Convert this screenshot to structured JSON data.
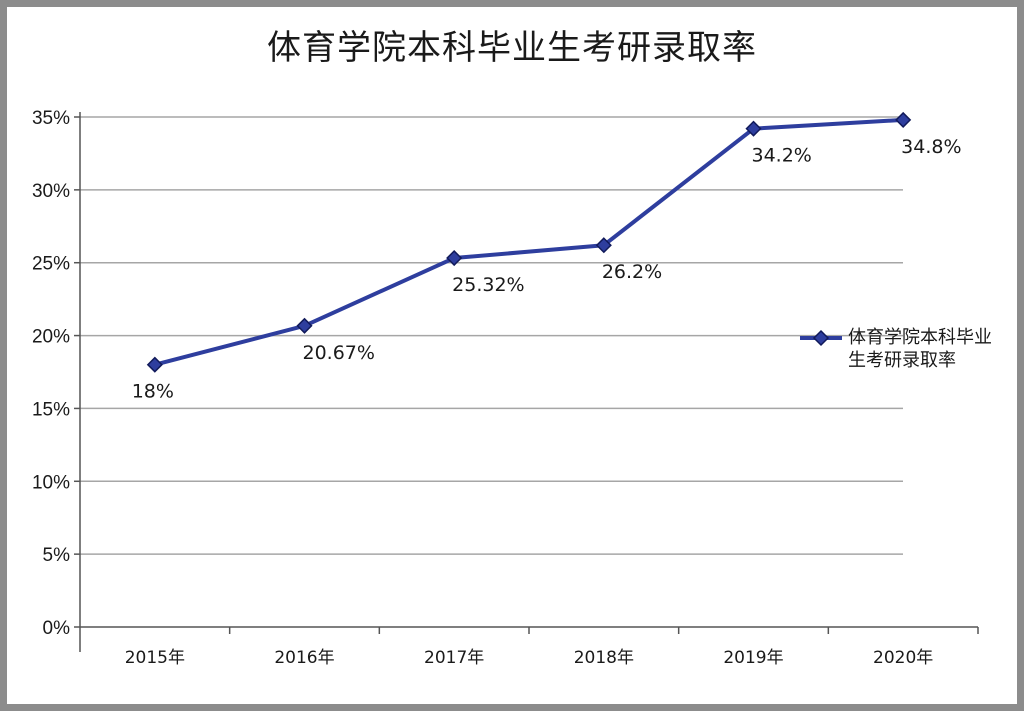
{
  "chart_data": {
    "type": "line",
    "title": "体育学院本科毕业生考研录取率",
    "categories": [
      "2015年",
      "2016年",
      "2017年",
      "2018年",
      "2019年",
      "2020年"
    ],
    "series": [
      {
        "name": "体育学院本科毕业生考研录取率",
        "values": [
          18,
          20.67,
          25.32,
          26.2,
          34.2,
          34.8
        ],
        "data_labels": [
          "18%",
          "20.67%",
          "25.32%",
          "26.2%",
          "34.2%",
          "34.8%"
        ],
        "color": "#2e3e9e",
        "marker": "diamond"
      }
    ],
    "y_ticks": [
      "0%",
      "5%",
      "10%",
      "15%",
      "20%",
      "25%",
      "30%",
      "35%"
    ],
    "ylim": [
      0,
      35
    ],
    "grid": "horizontal",
    "legend_position": "right"
  }
}
